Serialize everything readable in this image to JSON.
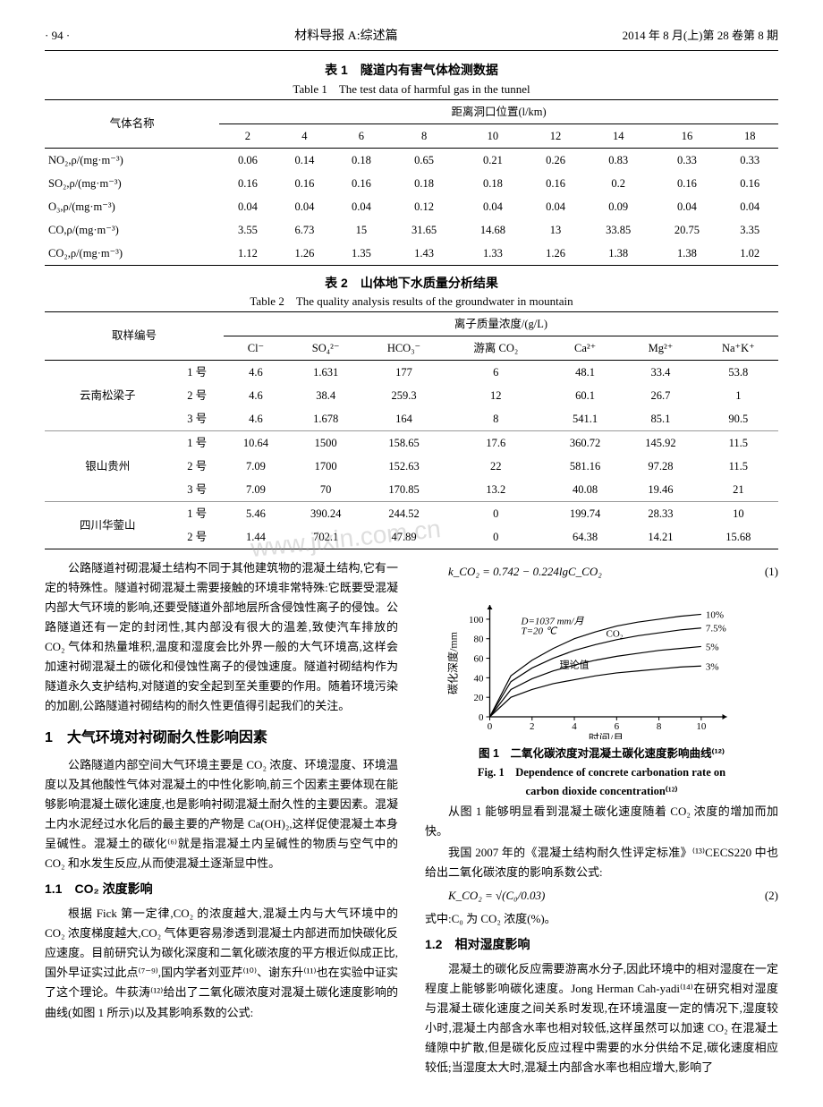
{
  "header": {
    "page": "· 94 ·",
    "journal": "材料导报 A:综述篇",
    "date": "2014 年 8 月(上)第 28 卷第 8 期"
  },
  "table1": {
    "title_zh": "表 1　隧道内有害气体检测数据",
    "title_en": "Table 1　The test data of harmful gas in the tunnel",
    "header_main": "距离洞口位置(l/km)",
    "row_label": "气体名称",
    "columns": [
      "2",
      "4",
      "6",
      "8",
      "10",
      "12",
      "14",
      "16",
      "18"
    ],
    "rows": [
      {
        "label": "NO₂,ρ/(mg·m⁻³)",
        "vals": [
          "0.06",
          "0.14",
          "0.18",
          "0.65",
          "0.21",
          "0.26",
          "0.83",
          "0.33",
          "0.33"
        ]
      },
      {
        "label": "SO₂,ρ/(mg·m⁻³)",
        "vals": [
          "0.16",
          "0.16",
          "0.16",
          "0.18",
          "0.18",
          "0.16",
          "0.2",
          "0.16",
          "0.16"
        ]
      },
      {
        "label": "O₃,ρ/(mg·m⁻³)",
        "vals": [
          "0.04",
          "0.04",
          "0.04",
          "0.12",
          "0.04",
          "0.04",
          "0.09",
          "0.04",
          "0.04"
        ]
      },
      {
        "label": "CO,ρ/(mg·m⁻³)",
        "vals": [
          "3.55",
          "6.73",
          "15",
          "31.65",
          "14.68",
          "13",
          "33.85",
          "20.75",
          "3.35"
        ]
      },
      {
        "label": "CO₂,ρ/(mg·m⁻³)",
        "vals": [
          "1.12",
          "1.26",
          "1.35",
          "1.43",
          "1.33",
          "1.26",
          "1.38",
          "1.38",
          "1.02"
        ]
      }
    ]
  },
  "table2": {
    "title_zh": "表 2　山体地下水质量分析结果",
    "title_en": "Table 2　The quality analysis results of the groundwater in mountain",
    "row_label": "取样编号",
    "header_main": "离子质量浓度/(g/L)",
    "columns": [
      "Cl⁻",
      "SO₄²⁻",
      "HCO₃⁻",
      "游离 CO₂",
      "Ca²⁺",
      "Mg²⁺",
      "Na⁺K⁺"
    ],
    "groups": [
      {
        "name": "云南松梁子",
        "rows": [
          {
            "id": "1 号",
            "vals": [
              "4.6",
              "1.631",
              "177",
              "6",
              "48.1",
              "33.4",
              "53.8"
            ]
          },
          {
            "id": "2 号",
            "vals": [
              "4.6",
              "38.4",
              "259.3",
              "12",
              "60.1",
              "26.7",
              "1"
            ]
          },
          {
            "id": "3 号",
            "vals": [
              "4.6",
              "1.678",
              "164",
              "8",
              "541.1",
              "85.1",
              "90.5"
            ]
          }
        ]
      },
      {
        "name": "银山贵州",
        "rows": [
          {
            "id": "1 号",
            "vals": [
              "10.64",
              "1500",
              "158.65",
              "17.6",
              "360.72",
              "145.92",
              "11.5"
            ]
          },
          {
            "id": "2 号",
            "vals": [
              "7.09",
              "1700",
              "152.63",
              "22",
              "581.16",
              "97.28",
              "11.5"
            ]
          },
          {
            "id": "3 号",
            "vals": [
              "7.09",
              "70",
              "170.85",
              "13.2",
              "40.08",
              "19.46",
              "21"
            ]
          }
        ]
      },
      {
        "name": "四川华蓥山",
        "rows": [
          {
            "id": "1 号",
            "vals": [
              "5.46",
              "390.24",
              "244.52",
              "0",
              "199.74",
              "28.33",
              "10"
            ]
          },
          {
            "id": "2 号",
            "vals": [
              "1.44",
              "702.1",
              "47.89",
              "0",
              "64.38",
              "14.21",
              "15.68"
            ]
          }
        ]
      }
    ]
  },
  "body": {
    "p1": "公路隧道衬砌混凝土结构不同于其他建筑物的混凝土结构,它有一定的特殊性。隧道衬砌混凝土需要接触的环境非常特殊:它既要受混凝内部大气环境的影响,还要受隧道外部地层所含侵蚀性离子的侵蚀。公路隧道还有一定的封闭性,其内部没有很大的温差,致使汽车排放的 CO₂ 气体和热量堆积,温度和湿度会比外界一般的大气环境高,这样会加速衬砌混凝土的碳化和侵蚀性离子的侵蚀速度。隧道衬砌结构作为隧道永久支护结构,对隧道的安全起到至关重要的作用。随着环境污染的加剧,公路隧道衬砌结构的耐久性更值得引起我们的关注。",
    "h1": "1　大气环境对衬砌耐久性影响因素",
    "p2": "公路隧道内部空间大气环境主要是 CO₂ 浓度、环境湿度、环境温度以及其他酸性气体对混凝土的中性化影响,前三个因素主要体现在能够影响混凝土碳化速度,也是影响衬砌混凝土耐久性的主要因素。混凝土内水泥经过水化后的最主要的产物是 Ca(OH)₂,这样促使混凝土本身呈碱性。混凝土的碳化⁽⁶⁾就是指混凝土内呈碱性的物质与空气中的CO₂ 和水发生反应,从而使混凝土逐渐显中性。",
    "h11": "1.1　CO₂ 浓度影响",
    "p3": "根据 Fick 第一定律,CO₂ 的浓度越大,混凝土内与大气环境中的 CO₂ 浓度梯度越大,CO₂ 气体更容易渗透到混凝土内部进而加快碳化反应速度。目前研究认为碳化深度和二氧化碳浓度的平方根近似成正比,国外早证实过此点⁽⁷⁻⁹⁾,国内学者刘亚芹⁽¹⁰⁾、谢东升⁽¹¹⁾也在实验中证实了这个理论。牛荻涛⁽¹²⁾给出了二氧化碳浓度对混凝土碳化速度影响的曲线(如图 1 所示)以及其影响系数的公式:",
    "eq1": "k_CO₂ = 0.742 − 0.224lgC_CO₂",
    "eq1_num": "(1)",
    "fig1_zh": "图 1　二氧化碳浓度对混凝土碳化速度影响曲线⁽¹²⁾",
    "fig1_en1": "Fig. 1　Dependence of concrete carbonation rate on",
    "fig1_en2": "carbon dioxide concentration⁽¹²⁾",
    "p4": "从图 1 能够明显看到混凝土碳化速度随着 CO₂ 浓度的增加而加快。",
    "p5": "我国 2007 年的《混凝土结构耐久性评定标准》⁽¹³⁾CECS220 中也给出二氧化碳浓度的影响系数公式:",
    "eq2": "K_CO₂ = √(C₀/0.03)",
    "eq2_num": "(2)",
    "eq2_note": "式中:C₀ 为 CO₂ 浓度(%)。",
    "h12": "1.2　相对湿度影响",
    "p6": "混凝土的碳化反应需要游离水分子,因此环境中的相对湿度在一定程度上能够影响碳化速度。Jong Herman Cah-yadi⁽¹⁴⁾在研究相对湿度与混凝土碳化速度之间关系时发现,在环境温度一定的情况下,湿度较小时,混凝土内部含水率也相对较低,这样虽然可以加速 CO₂ 在混凝土缝隙中扩散,但是碳化反应过程中需要的水分供给不足,碳化速度相应较低;当湿度太大时,混凝土内部含水率也相应增大,影响了"
  },
  "chart": {
    "type": "line",
    "x_label": "时间/月",
    "y_label": "碳化深度/mm",
    "annotations": [
      "D=1037 mm/月",
      "T=20 ℃",
      "CO₂",
      "理论值"
    ],
    "series_labels": [
      "10%",
      "7.5%",
      "5%",
      "3%"
    ],
    "x_ticks": [
      0,
      2,
      4,
      6,
      8,
      10
    ],
    "y_ticks": [
      0,
      20,
      40,
      60,
      80,
      100
    ],
    "xlim": [
      0,
      11
    ],
    "ylim": [
      0,
      110
    ],
    "colors": {
      "line": "#000",
      "axis": "#000",
      "bg": "#fff"
    },
    "line_width": 1.2,
    "series": [
      {
        "label": "10%",
        "points": [
          [
            0,
            0
          ],
          [
            1,
            42
          ],
          [
            2,
            58
          ],
          [
            3,
            70
          ],
          [
            4,
            80
          ],
          [
            5,
            87
          ],
          [
            6,
            93
          ],
          [
            7,
            97
          ],
          [
            8,
            100
          ],
          [
            9,
            103
          ],
          [
            10,
            105
          ]
        ]
      },
      {
        "label": "7.5%",
        "points": [
          [
            0,
            0
          ],
          [
            1,
            36
          ],
          [
            2,
            50
          ],
          [
            3,
            60
          ],
          [
            4,
            68
          ],
          [
            5,
            74
          ],
          [
            6,
            79
          ],
          [
            7,
            83
          ],
          [
            8,
            86
          ],
          [
            9,
            89
          ],
          [
            10,
            91
          ]
        ]
      },
      {
        "label": "5%",
        "points": [
          [
            0,
            0
          ],
          [
            1,
            28
          ],
          [
            2,
            39
          ],
          [
            3,
            47
          ],
          [
            4,
            53
          ],
          [
            5,
            58
          ],
          [
            6,
            62
          ],
          [
            7,
            65
          ],
          [
            8,
            68
          ],
          [
            9,
            70
          ],
          [
            10,
            72
          ]
        ]
      },
      {
        "label": "3%",
        "points": [
          [
            0,
            0
          ],
          [
            1,
            20
          ],
          [
            2,
            28
          ],
          [
            3,
            34
          ],
          [
            4,
            38
          ],
          [
            5,
            42
          ],
          [
            6,
            45
          ],
          [
            7,
            47
          ],
          [
            8,
            49
          ],
          [
            9,
            51
          ],
          [
            10,
            52
          ]
        ]
      }
    ]
  },
  "watermark": "www.jixin.com.cn"
}
